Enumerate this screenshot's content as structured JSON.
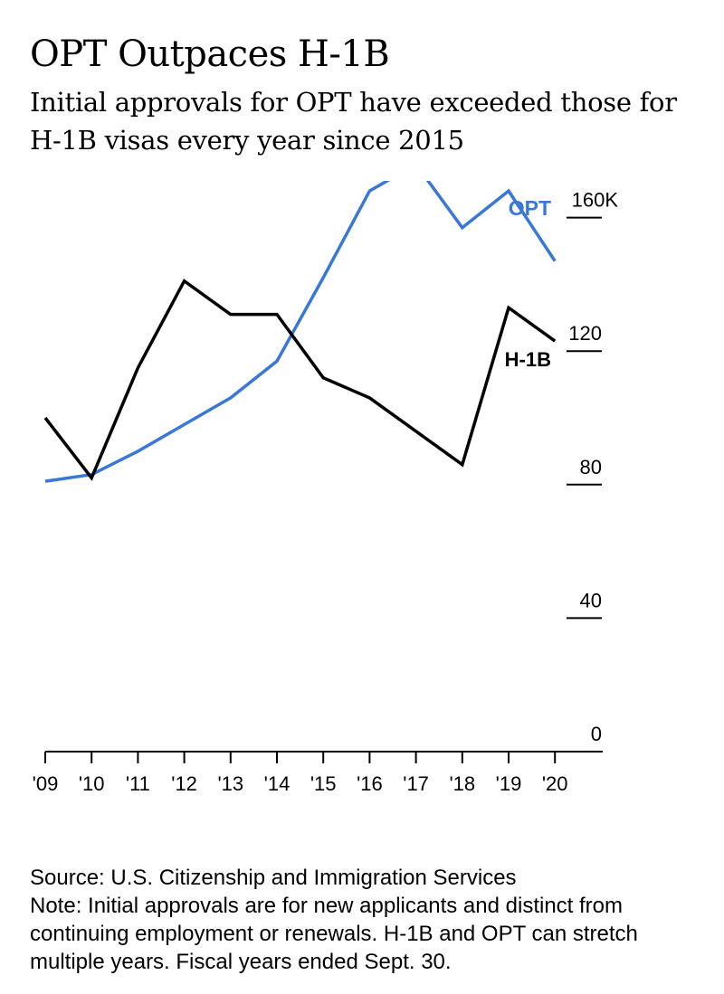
{
  "title": "OPT Outpaces H-1B",
  "subtitle": "Initial approvals for OPT have exceeded those for H-1B visas every year since 2015",
  "footer": {
    "source": "Source: U.S. Citizenship and Immigration Services",
    "note": "Note: Initial approvals are for new applicants and distinct from continuing employment or renewals. H-1B and OPT can stretch multiple years. Fiscal years ended Sept. 30."
  },
  "chart_data": {
    "type": "line",
    "title": "OPT Outpaces H-1B",
    "subtitle": "Initial approvals for OPT have exceeded those for H-1B visas every year since 2015",
    "x": [
      "'09",
      "'10",
      "'11",
      "'12",
      "'13",
      "'14",
      "'15",
      "'16",
      "'17",
      "'18",
      "'19",
      "'20"
    ],
    "ytick_labels": [
      "0",
      "40",
      "80",
      "120",
      "160K"
    ],
    "yticks": [
      0,
      40,
      80,
      120,
      160
    ],
    "ylim": [
      0,
      160
    ],
    "grid": false,
    "legend": "inline labels",
    "series": [
      {
        "name": "OPT",
        "color": "#3a78d8",
        "values": [
          81,
          83,
          90,
          98,
          106,
          117,
          142,
          168,
          176,
          157,
          168,
          147
        ]
      },
      {
        "name": "H-1B",
        "color": "#000000",
        "values": [
          100,
          82,
          115,
          141,
          131,
          131,
          112,
          106,
          96,
          86,
          133,
          123
        ]
      }
    ]
  }
}
